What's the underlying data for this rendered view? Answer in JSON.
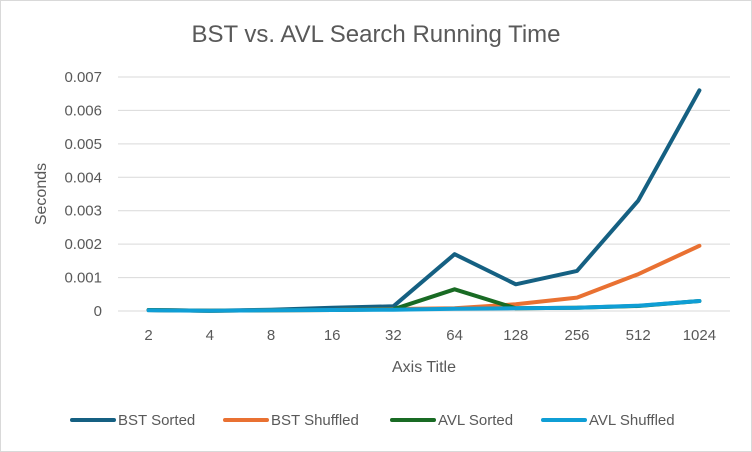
{
  "chart_data": {
    "type": "line",
    "title": "BST vs. AVL Search Running Time",
    "xlabel": "Axis Title",
    "ylabel": "Seconds",
    "categories": [
      "2",
      "4",
      "8",
      "16",
      "32",
      "64",
      "128",
      "256",
      "512",
      "1024"
    ],
    "ylim": [
      0,
      0.007
    ],
    "yticks": [
      "0",
      "0.001",
      "0.002",
      "0.003",
      "0.004",
      "0.005",
      "0.006",
      "0.007"
    ],
    "grid": true,
    "legend_position": "bottom",
    "series": [
      {
        "name": "BST Sorted",
        "color": "#156082",
        "values": [
          3e-05,
          1e-05,
          4e-05,
          0.0001,
          0.00014,
          0.0017,
          0.0008,
          0.0012,
          0.0033,
          0.0066
        ]
      },
      {
        "name": "BST Shuffled",
        "color": "#e97132",
        "values": [
          3e-05,
          1e-05,
          2e-05,
          3e-05,
          6e-05,
          8e-05,
          0.0002,
          0.0004,
          0.0011,
          0.00195
        ]
      },
      {
        "name": "AVL Sorted",
        "color": "#196b24",
        "values": [
          3e-05,
          1e-05,
          2e-05,
          3e-05,
          5e-05,
          0.00065,
          8e-05,
          0.0001,
          0.00015,
          0.0003
        ]
      },
      {
        "name": "AVL Shuffled",
        "color": "#0f9ed5",
        "values": [
          2e-05,
          1e-05,
          2e-05,
          3e-05,
          4e-05,
          7e-05,
          8e-05,
          0.0001,
          0.00016,
          0.0003
        ]
      }
    ]
  }
}
